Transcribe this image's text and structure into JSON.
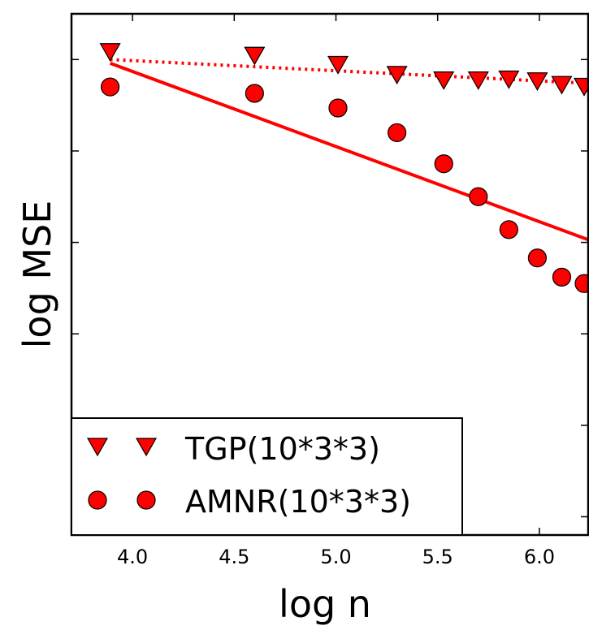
{
  "chart_data": {
    "type": "scatter",
    "title": "",
    "xlabel": "log n",
    "ylabel": "log MSE",
    "xlim": [
      3.7,
      6.24
    ],
    "ylim": [
      -5.2,
      0.5
    ],
    "xticks": [
      4.0,
      4.5,
      5.0,
      5.5,
      6.0
    ],
    "xtick_labels": [
      "4.0",
      "4.5",
      "5.0",
      "5.5",
      "6.0"
    ],
    "yticks": [
      -5,
      -4,
      -3,
      -2,
      -1,
      0
    ],
    "grid": false,
    "legend_position": "bottom-left",
    "series": [
      {
        "name": "TGP(10*3*3)",
        "marker": "triangle-down",
        "color": "#ff0000",
        "x": [
          3.89,
          4.6,
          5.01,
          5.3,
          5.53,
          5.7,
          5.85,
          5.99,
          6.11,
          6.22
        ],
        "y": [
          0.09,
          0.05,
          -0.05,
          -0.16,
          -0.22,
          -0.22,
          -0.21,
          -0.23,
          -0.27,
          -0.29
        ]
      },
      {
        "name": "AMNR(10*3*3)",
        "marker": "circle",
        "color": "#ff0000",
        "x": [
          3.89,
          4.6,
          5.01,
          5.3,
          5.53,
          5.7,
          5.85,
          5.99,
          6.11,
          6.22
        ],
        "y": [
          -0.3,
          -0.37,
          -0.53,
          -0.8,
          -1.14,
          -1.5,
          -1.86,
          -2.17,
          -2.38,
          -2.45
        ]
      }
    ],
    "fit_lines": [
      {
        "style": "dotted",
        "color": "#ff0000",
        "x": [
          3.89,
          6.24
        ],
        "y": [
          0.0,
          -0.26
        ]
      },
      {
        "style": "solid",
        "color": "#ff0000",
        "x": [
          3.89,
          6.24
        ],
        "y": [
          -0.04,
          -1.97
        ]
      }
    ]
  }
}
